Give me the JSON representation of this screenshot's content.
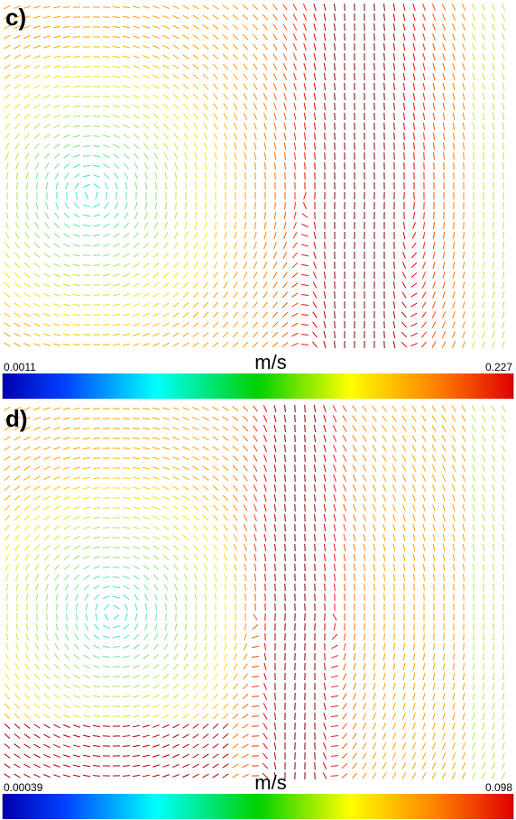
{
  "chart_data": [
    {
      "type": "quiver",
      "title": "c)",
      "colorbar_label": "m/s",
      "clim": [
        0.0011,
        0.227
      ]
    },
    {
      "type": "quiver",
      "title": "d)",
      "colorbar_label": "m/s",
      "clim": [
        0.00039,
        0.098
      ]
    }
  ]
}
